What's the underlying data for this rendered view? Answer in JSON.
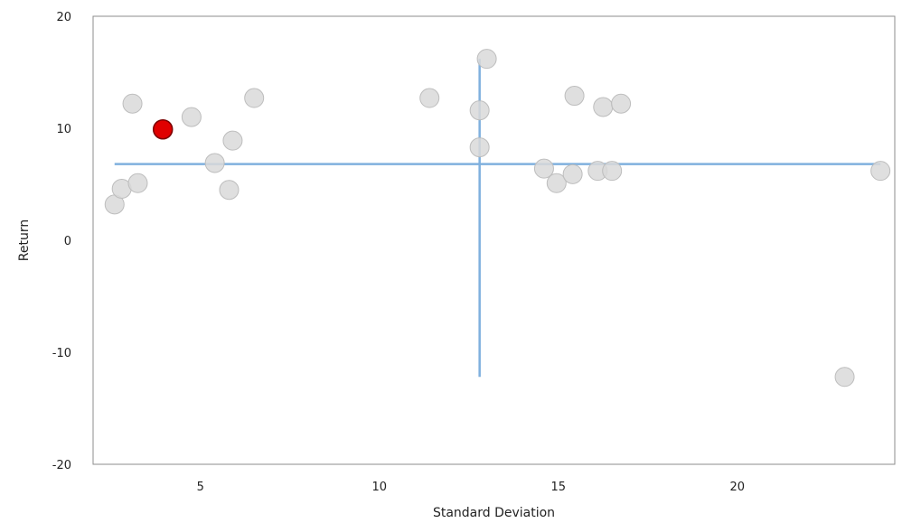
{
  "chart_data": {
    "type": "scatter",
    "xlabel": "Standard Deviation",
    "ylabel": "Return",
    "xlim": [
      2,
      24.4
    ],
    "ylim": [
      -20,
      20
    ],
    "x_ticks": [
      5,
      10,
      15,
      20
    ],
    "y_ticks": [
      -20,
      -10,
      0,
      10,
      20
    ],
    "grid": false,
    "legend": "none",
    "points": [
      {
        "x": 2.6,
        "y": 3.2
      },
      {
        "x": 2.8,
        "y": 4.6
      },
      {
        "x": 3.1,
        "y": 12.2
      },
      {
        "x": 3.25,
        "y": 5.1
      },
      {
        "x": 4.75,
        "y": 11.0
      },
      {
        "x": 5.4,
        "y": 6.9
      },
      {
        "x": 5.8,
        "y": 4.5
      },
      {
        "x": 5.9,
        "y": 8.9
      },
      {
        "x": 6.5,
        "y": 12.7
      },
      {
        "x": 11.4,
        "y": 12.7
      },
      {
        "x": 12.8,
        "y": 11.6
      },
      {
        "x": 12.8,
        "y": 8.3
      },
      {
        "x": 13.0,
        "y": 16.2
      },
      {
        "x": 14.6,
        "y": 6.4
      },
      {
        "x": 14.95,
        "y": 5.1
      },
      {
        "x": 15.4,
        "y": 5.9
      },
      {
        "x": 15.45,
        "y": 12.9
      },
      {
        "x": 16.1,
        "y": 6.2
      },
      {
        "x": 16.25,
        "y": 11.9
      },
      {
        "x": 16.5,
        "y": 6.2
      },
      {
        "x": 16.75,
        "y": 12.2
      },
      {
        "x": 23.0,
        "y": -12.2
      },
      {
        "x": 24.0,
        "y": 6.2
      }
    ],
    "highlight_point": {
      "x": 3.95,
      "y": 9.9
    },
    "mean_lines": {
      "horizontal": {
        "y": 6.8,
        "x_from": 2.6,
        "x_to": 24.0
      },
      "vertical": {
        "x": 12.8,
        "y_from": -12.2,
        "y_to": 16.2
      }
    },
    "colors": {
      "point_fill": "#d9d9d9",
      "point_stroke": "#bdbdbd",
      "highlight_fill": "#e00000",
      "highlight_stroke": "#7a0000",
      "mean_line": "#7fb0de",
      "frame": "#8c8c8c"
    }
  }
}
